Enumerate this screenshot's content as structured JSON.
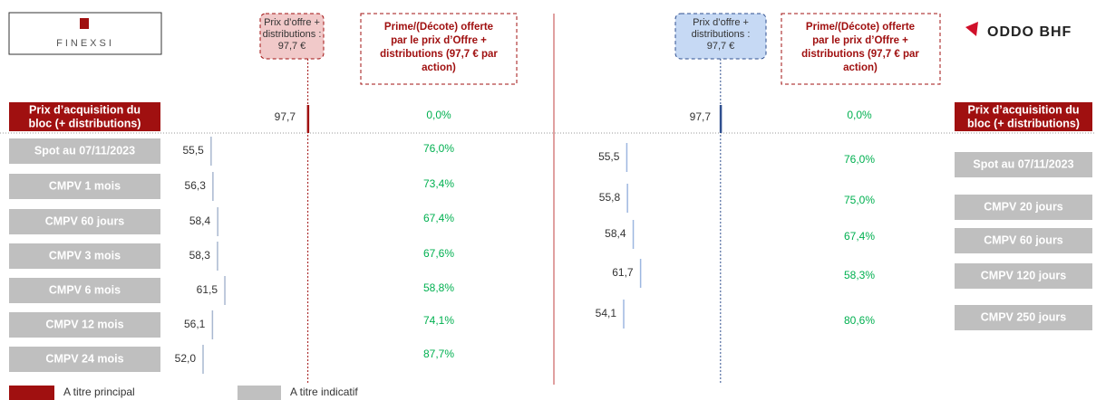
{
  "left": {
    "logo": "FINEXSI",
    "offer_box": [
      "Prix d’offre +",
      "distributions :",
      "97,7 €"
    ],
    "premium_box": [
      "Prime/(Décote) offerte",
      "par le prix d’Offre +",
      "distributions (97,7 € par",
      "action)"
    ],
    "reference": {
      "label": [
        "Prix d’acquisition du",
        "bloc (+ distributions)"
      ],
      "value": 97.7,
      "value_label": "97,7",
      "premium": "0,0%"
    },
    "rows": [
      {
        "label": "Spot au 07/11/2023",
        "value": 55.5,
        "value_label": "55,5",
        "premium": "76,0%"
      },
      {
        "label": "CMPV 1 mois",
        "value": 56.3,
        "value_label": "56,3",
        "premium": "73,4%"
      },
      {
        "label": "CMPV 60 jours",
        "value": 58.4,
        "value_label": "58,4",
        "premium": "67,4%"
      },
      {
        "label": "CMPV 3 mois",
        "value": 58.3,
        "value_label": "58,3",
        "premium": "67,6%"
      },
      {
        "label": "CMPV 6 mois",
        "value": 61.5,
        "value_label": "61,5",
        "premium": "58,8%"
      },
      {
        "label": "CMPV 12 mois",
        "value": 56.1,
        "value_label": "56,1",
        "premium": "74,1%"
      },
      {
        "label": "CMPV 24 mois",
        "value": 52.0,
        "value_label": "52,0",
        "premium": "87,7%"
      }
    ]
  },
  "right": {
    "logo": "ODDO BHF",
    "offer_box": [
      "Prix d’offre +",
      "distributions :",
      "97,7 €"
    ],
    "premium_box": [
      "Prime/(Décote) offerte",
      "par le prix d’Offre +",
      "distributions (97,7 € par",
      "action)"
    ],
    "reference": {
      "label": [
        "Prix d’acquisition du",
        "bloc (+ distributions)"
      ],
      "value": 97.7,
      "value_label": "97,7",
      "premium": "0,0%"
    },
    "rows": [
      {
        "label": "Spot au 07/11/2023",
        "value": 55.5,
        "value_label": "55,5",
        "premium": "76,0%"
      },
      {
        "label": "CMPV 20 jours",
        "value": 55.8,
        "value_label": "55,8",
        "premium": "75,0%"
      },
      {
        "label": "CMPV 60 jours",
        "value": 58.4,
        "value_label": "58,4",
        "premium": "67,4%"
      },
      {
        "label": "CMPV 120 jours",
        "value": 61.7,
        "value_label": "61,7",
        "premium": "58,3%"
      },
      {
        "label": "CMPV 250 jours",
        "value": 54.1,
        "value_label": "54,1",
        "premium": "80,6%"
      }
    ]
  },
  "legend": [
    "A titre principal",
    "A titre indicatif"
  ]
}
